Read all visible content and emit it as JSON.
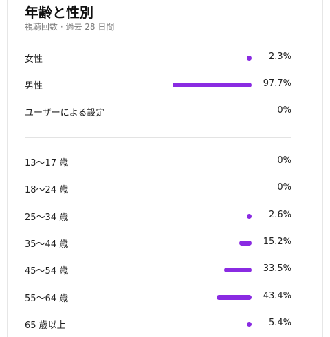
{
  "header": {
    "title": "年齢と性別",
    "subtitle": "視聴回数 · 過去 28 日間"
  },
  "colors": {
    "bar": "#8a2be2"
  },
  "gender": [
    {
      "label": "女性",
      "percent_text": "2.3%",
      "value": 2.3
    },
    {
      "label": "男性",
      "percent_text": "97.7%",
      "value": 97.7
    },
    {
      "label": "ユーザーによる設定",
      "percent_text": "0%",
      "value": 0
    }
  ],
  "age": [
    {
      "label": "13〜17 歳",
      "percent_text": "0%",
      "value": 0
    },
    {
      "label": "18〜24 歳",
      "percent_text": "0%",
      "value": 0
    },
    {
      "label": "25〜34 歳",
      "percent_text": "2.6%",
      "value": 2.6
    },
    {
      "label": "35〜44 歳",
      "percent_text": "15.2%",
      "value": 15.2
    },
    {
      "label": "45〜54 歳",
      "percent_text": "33.5%",
      "value": 33.5
    },
    {
      "label": "55〜64 歳",
      "percent_text": "43.4%",
      "value": 43.4
    },
    {
      "label": "65 歳以上",
      "percent_text": "5.4%",
      "value": 5.4
    }
  ]
}
